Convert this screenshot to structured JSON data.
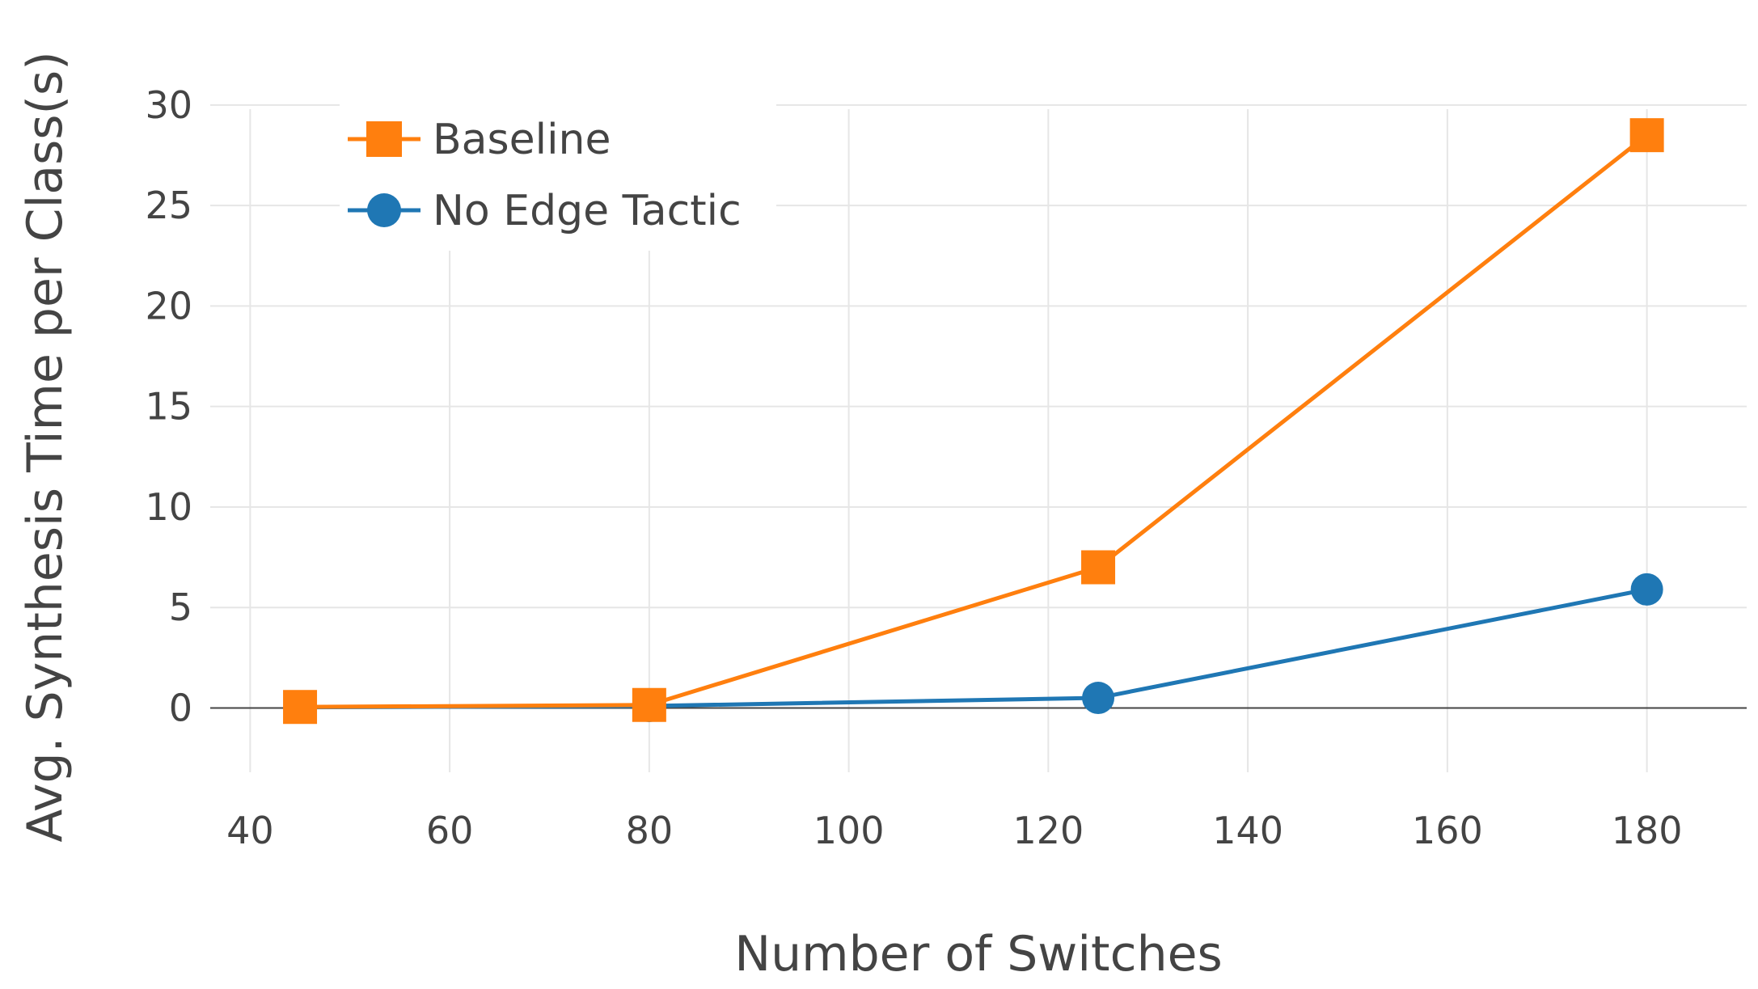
{
  "chart_data": {
    "type": "line",
    "title": "",
    "xlabel": "Number of Switches",
    "ylabel": "Avg. Synthesis Time per Class(s)",
    "xlim": [
      36,
      190
    ],
    "ylim": [
      -3.2,
      30.8
    ],
    "xticks": [
      40,
      60,
      80,
      100,
      120,
      140,
      160,
      180
    ],
    "yticks": [
      0,
      5,
      10,
      15,
      20,
      25,
      30
    ],
    "grid": true,
    "legend_position": "top-left",
    "series": [
      {
        "name": "Baseline",
        "color": "#ff7f0e",
        "marker": "square",
        "x": [
          45,
          80,
          125,
          180
        ],
        "y": [
          0.05,
          0.15,
          7.0,
          28.5
        ]
      },
      {
        "name": "No Edge Tactic",
        "color": "#1f77b4",
        "marker": "circle",
        "x": [
          45,
          80,
          125,
          180
        ],
        "y": [
          0.03,
          0.1,
          0.5,
          5.9
        ]
      }
    ]
  }
}
